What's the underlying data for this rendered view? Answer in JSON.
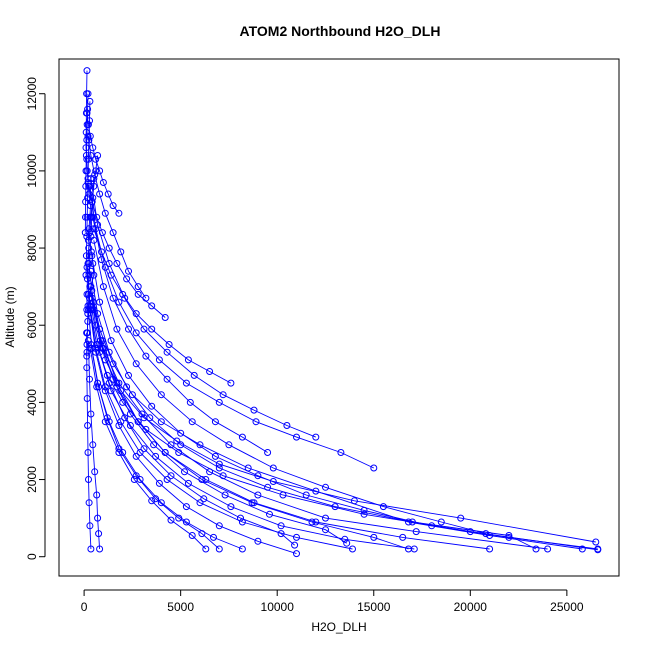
{
  "chart_data": {
    "type": "line",
    "title": "ATOM2 Northbound H2O_DLH",
    "xlabel": "H2O_DLH",
    "ylabel": "Altitude (m)",
    "xlim": [
      -1300,
      27700
    ],
    "ylim": [
      -500,
      12900
    ],
    "xticks": [
      0,
      5000,
      10000,
      15000,
      20000,
      25000
    ],
    "yticks": [
      0,
      2000,
      4000,
      6000,
      8000,
      10000,
      12000
    ],
    "grid": false,
    "legend": "none",
    "marker": "open-circle",
    "colors": {
      "series": "#0000ff",
      "axis": "#000000"
    },
    "series": [
      {
        "x": [
          150,
          130,
          120,
          110,
          100,
          140,
          160,
          200,
          260,
          330,
          300,
          250,
          220,
          380,
          450,
          500,
          350,
          280,
          230,
          190,
          160,
          150,
          140
        ],
        "y": [
          12600,
          12000,
          11500,
          11000,
          10600,
          10300,
          10000,
          9700,
          9400,
          9100,
          8800,
          8500,
          8200,
          7900,
          7600,
          7300,
          7000,
          6700,
          6400,
          6100,
          5800,
          5500,
          5200
        ]
      },
      {
        "x": [
          26600,
          20000,
          14500,
          10300,
          7200,
          4900,
          3200,
          2000,
          1200,
          650,
          320,
          150
        ],
        "y": [
          180,
          650,
          1100,
          1600,
          2100,
          2700,
          3300,
          4000,
          4700,
          5500,
          6400,
          7500
        ]
      },
      {
        "x": [
          26500,
          19500,
          14000,
          9800,
          7000,
          4800,
          3100,
          1900,
          1100,
          600,
          300
        ],
        "y": [
          380,
          1000,
          1450,
          1950,
          2400,
          3000,
          3600,
          4300,
          5100,
          6000,
          7000
        ]
      },
      {
        "x": [
          25800,
          21000,
          16800,
          12000,
          8500,
          6000,
          4000,
          2500,
          1500,
          800,
          400
        ],
        "y": [
          200,
          550,
          900,
          1700,
          2300,
          2900,
          3500,
          4200,
          5000,
          5900,
          6900
        ]
      },
      {
        "x": [
          24000,
          17200,
          12500,
          9000,
          6500,
          4500,
          3000,
          1800,
          1000,
          500,
          250
        ],
        "y": [
          200,
          650,
          1000,
          1600,
          2200,
          2900,
          3700,
          4500,
          5400,
          6400,
          7600
        ]
      },
      {
        "x": [
          23400,
          22000,
          17000,
          13000,
          9500,
          7000,
          5000,
          3400,
          2200,
          1300,
          700,
          350
        ],
        "y": [
          200,
          550,
          900,
          1300,
          1800,
          2300,
          2900,
          3600,
          4400,
          5300,
          6300,
          7400
        ]
      },
      {
        "x": [
          21000,
          16500,
          12000,
          8800,
          6300,
          4200,
          2800,
          1700,
          950,
          480
        ],
        "y": [
          200,
          500,
          900,
          1400,
          2000,
          2700,
          3500,
          4400,
          5400,
          6600
        ]
      },
      {
        "x": [
          17100,
          13500,
          10200,
          7600,
          5400,
          3700,
          2400,
          1400,
          800,
          400
        ],
        "y": [
          200,
          450,
          800,
          1300,
          1900,
          2600,
          3400,
          4300,
          5300,
          6400
        ]
      },
      {
        "x": [
          16800,
          15000,
          11800,
          8700,
          6100,
          4200,
          2800,
          1700,
          950
        ],
        "y": [
          200,
          500,
          900,
          1400,
          2000,
          2700,
          3500,
          4500,
          5600
        ]
      },
      {
        "x": [
          13900,
          11000,
          8200,
          6000,
          4300,
          2900,
          1900,
          1100,
          600,
          300
        ],
        "y": [
          200,
          500,
          900,
          1400,
          2000,
          2700,
          3500,
          4400,
          5400,
          6500
        ]
      },
      {
        "x": [
          13600,
          12500,
          9600,
          7300,
          5200,
          3600,
          2400,
          1500,
          850,
          420
        ],
        "y": [
          350,
          700,
          1100,
          1600,
          2200,
          2900,
          3700,
          4600,
          5600,
          6700
        ]
      },
      {
        "x": [
          11000,
          9000,
          7000,
          5300,
          3900,
          2700,
          1800,
          1100,
          600,
          300
        ],
        "y": [
          80,
          400,
          800,
          1300,
          1900,
          2600,
          3400,
          4300,
          5300,
          6400
        ]
      },
      {
        "x": [
          10900,
          10200,
          8100,
          6200,
          4500,
          3100,
          2100,
          1300,
          700
        ],
        "y": [
          300,
          600,
          1000,
          1500,
          2100,
          2800,
          3600,
          4500,
          5500
        ]
      },
      {
        "x": [
          8200,
          6700,
          5300,
          4000,
          2900,
          2000,
          1300,
          750,
          400,
          200
        ],
        "y": [
          200,
          500,
          900,
          1400,
          2000,
          2700,
          3500,
          4400,
          5400,
          6500
        ]
      },
      {
        "x": [
          7000,
          6100,
          4900,
          3700,
          2700,
          1800,
          1200,
          700,
          350
        ],
        "y": [
          200,
          600,
          1000,
          1500,
          2100,
          2800,
          3600,
          4500,
          5500
        ]
      },
      {
        "x": [
          6300,
          5600,
          4500,
          3500,
          2600,
          1800,
          1100,
          650,
          320
        ],
        "y": [
          200,
          550,
          950,
          1450,
          2000,
          2700,
          3500,
          4400,
          5400
        ]
      },
      {
        "x": [
          800,
          750,
          700,
          650,
          550,
          450,
          350,
          280,
          220
        ],
        "y": [
          200,
          600,
          1000,
          1600,
          2200,
          2900,
          3700,
          4600,
          5600
        ]
      },
      {
        "x": [
          350,
          300,
          260,
          230,
          200,
          180,
          160,
          140,
          130
        ],
        "y": [
          200,
          800,
          1400,
          2000,
          2700,
          3400,
          4100,
          4900,
          5800
        ]
      },
      {
        "x": [
          26600,
          22000,
          18000,
          14500,
          11500,
          9000,
          6800,
          5000,
          3500,
          2300,
          1400,
          800,
          400
        ],
        "y": [
          200,
          500,
          800,
          1200,
          1600,
          2100,
          2600,
          3200,
          3900,
          4700,
          5600,
          6600,
          7800
        ]
      },
      {
        "x": [
          20800,
          18500,
          15500,
          12500,
          9800,
          7500,
          5600,
          4000,
          2700,
          1700,
          1000,
          500
        ],
        "y": [
          600,
          900,
          1300,
          1800,
          2300,
          2900,
          3500,
          4200,
          5000,
          5900,
          7000,
          8200
        ]
      },
      {
        "x": [
          15000,
          13300,
          11000,
          8900,
          7000,
          5300,
          3900,
          2700,
          1800,
          1100,
          600,
          300
        ],
        "y": [
          2300,
          2700,
          3100,
          3500,
          4000,
          4500,
          5100,
          5800,
          6600,
          7500,
          8500,
          9600
        ]
      },
      {
        "x": [
          12000,
          10500,
          8800,
          7200,
          5700,
          4300,
          3100,
          2100,
          1300,
          700,
          350
        ],
        "y": [
          3100,
          3400,
          3800,
          4200,
          4700,
          5300,
          5900,
          6700,
          7600,
          8600,
          9800
        ]
      },
      {
        "x": [
          9500,
          8200,
          6800,
          5500,
          4300,
          3200,
          2300,
          1500,
          900,
          450
        ],
        "y": [
          2700,
          3100,
          3500,
          4000,
          4600,
          5200,
          5900,
          6700,
          7700,
          8800
        ]
      },
      {
        "x": [
          3200,
          2800,
          2300,
          1900,
          1500,
          1100,
          800,
          550,
          350,
          200
        ],
        "y": [
          6700,
          7000,
          7400,
          7900,
          8400,
          8900,
          9400,
          9900,
          10400,
          10900
        ]
      },
      {
        "x": [
          1800,
          1500,
          1250,
          1000,
          800,
          600,
          450,
          320,
          220,
          150
        ],
        "y": [
          8900,
          9100,
          9400,
          9700,
          10000,
          10300,
          10600,
          10900,
          11200,
          11500
        ]
      },
      {
        "x": [
          4200,
          3500,
          2800,
          2200,
          1700,
          1300,
          950,
          650,
          400,
          250
        ],
        "y": [
          6200,
          6500,
          6800,
          7200,
          7600,
          8000,
          8400,
          8800,
          9200,
          9600
        ]
      },
      {
        "x": [
          7600,
          6500,
          5400,
          4400,
          3500,
          2700,
          2000,
          1400,
          900,
          500
        ],
        "y": [
          4500,
          4800,
          5100,
          5500,
          5900,
          6300,
          6800,
          7300,
          7900,
          8500
        ]
      },
      {
        "x": [
          700,
          600,
          500,
          420,
          350,
          290,
          240,
          200,
          170,
          150,
          140
        ],
        "y": [
          10400,
          10000,
          9600,
          9200,
          8800,
          8400,
          8000,
          7600,
          7200,
          6800,
          6400
        ]
      },
      {
        "x": [
          500,
          450,
          400,
          350,
          300,
          260,
          220,
          190,
          170,
          150
        ],
        "y": [
          9800,
          9300,
          8800,
          8300,
          7800,
          7300,
          6800,
          6300,
          5800,
          5300
        ]
      },
      {
        "x": [
          300,
          280,
          250,
          220,
          200,
          180,
          160,
          140,
          120,
          100
        ],
        "y": [
          11800,
          11300,
          10800,
          10300,
          9800,
          9300,
          8800,
          8300,
          7800,
          7300
        ]
      },
      {
        "x": [
          200,
          180,
          160,
          140,
          120,
          100,
          90,
          80,
          70,
          60
        ],
        "y": [
          12000,
          11600,
          11200,
          10800,
          10400,
          10000,
          9600,
          9200,
          8800,
          8400
        ]
      }
    ]
  }
}
